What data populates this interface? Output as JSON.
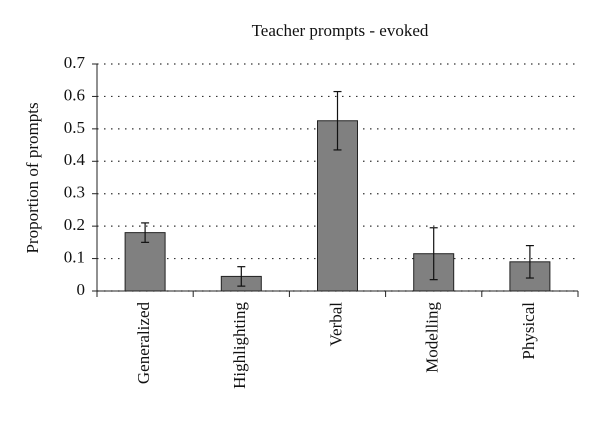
{
  "chart_data": {
    "type": "bar",
    "title": "Teacher prompts - evoked",
    "y_label": "Proportion of prompts",
    "categories": [
      "Generalized",
      "Highlighting",
      "Verbal",
      "Modelling",
      "Physical"
    ],
    "values": [
      0.18,
      0.045,
      0.525,
      0.115,
      0.09
    ],
    "errors": [
      0.03,
      0.03,
      0.09,
      0.08,
      0.05
    ],
    "color": "#808080",
    "ylim": [
      0,
      0.7
    ],
    "yticks": [
      0,
      0.1,
      0.2,
      0.3,
      0.4,
      0.5,
      0.6,
      0.7
    ],
    "grid": true
  }
}
